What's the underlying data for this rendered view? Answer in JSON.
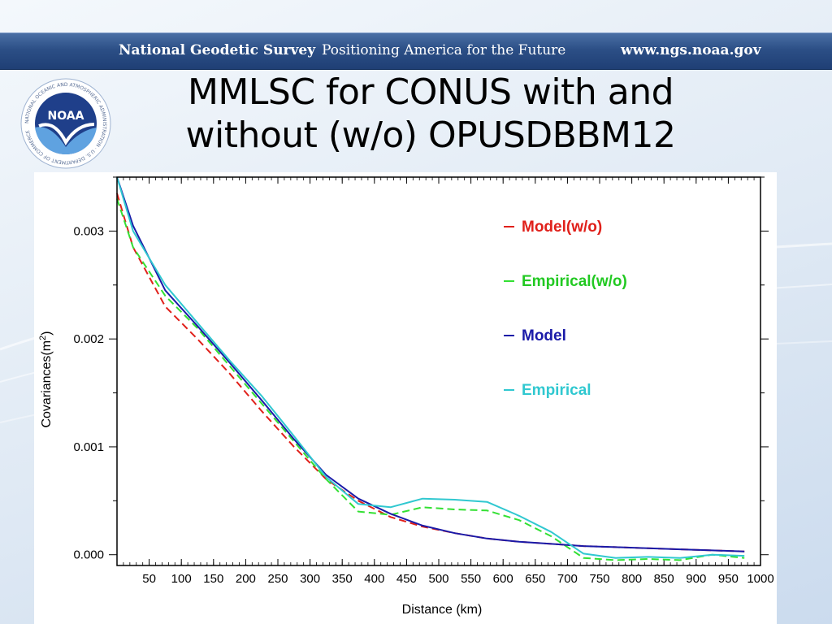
{
  "header": {
    "org_name": "National Geodetic Survey",
    "tagline": "Positioning America for the Future",
    "url": "www.ngs.noaa.gov"
  },
  "logo": {
    "text": "NOAA",
    "ring_text": "NATIONAL OCEANIC AND ATMOSPHERIC ADMINISTRATION · U.S. DEPARTMENT OF COMMERCE",
    "icon": "noaa-seal-icon"
  },
  "slide": {
    "title_line1": "MMLSC for CONUS with and",
    "title_line2": "without (w/o) OPUSDBBM12"
  },
  "chart_data": {
    "type": "line",
    "xlabel": "Distance (km)",
    "ylabel_main": "Covariances(m",
    "ylabel_sup": "2",
    "ylabel_close": ")",
    "xlim": [
      0,
      1000
    ],
    "ylim": [
      -0.0001,
      0.0035
    ],
    "x_ticks": [
      50,
      100,
      150,
      200,
      250,
      300,
      350,
      400,
      450,
      500,
      550,
      600,
      650,
      700,
      750,
      800,
      850,
      900,
      950,
      1000
    ],
    "y_ticks": [
      0.0,
      0.001,
      0.002,
      0.003
    ],
    "y_tick_labels": [
      "0.000",
      "0.001",
      "0.002",
      "0.003"
    ],
    "grid": false,
    "legend_position": "top-right",
    "series": [
      {
        "name": "Model(w/o)",
        "color": "#e0201a",
        "dash": "dashed",
        "x": [
          0,
          25,
          75,
          125,
          175,
          225,
          275,
          325,
          375,
          425,
          475,
          525,
          575,
          625,
          675,
          725,
          775,
          825,
          875,
          925,
          975
        ],
        "y": [
          0.00335,
          0.00285,
          0.0023,
          0.002,
          0.00168,
          0.00133,
          0.001,
          0.0007,
          0.0005,
          0.00035,
          0.00026,
          0.0002,
          0.00015,
          0.00012,
          0.0001,
          8e-05,
          7e-05,
          6e-05,
          5e-05,
          4e-05,
          3e-05
        ]
      },
      {
        "name": "Empirical(w/o)",
        "color": "#33e033",
        "dash": "dashed",
        "x": [
          0,
          25,
          75,
          125,
          175,
          225,
          275,
          325,
          375,
          425,
          475,
          525,
          575,
          625,
          675,
          725,
          775,
          825,
          875,
          925,
          975
        ],
        "y": [
          0.0033,
          0.00285,
          0.0024,
          0.0021,
          0.00175,
          0.0014,
          0.00105,
          0.0007,
          0.0004,
          0.00037,
          0.00044,
          0.00042,
          0.00041,
          0.00032,
          0.00017,
          -3e-05,
          -5e-05,
          -4e-05,
          -5e-05,
          0.0,
          -3e-05
        ]
      },
      {
        "name": "Model",
        "color": "#1a1aa8",
        "dash": "solid",
        "x": [
          0,
          25,
          75,
          125,
          175,
          225,
          275,
          325,
          375,
          425,
          475,
          525,
          575,
          625,
          675,
          725,
          775,
          825,
          875,
          925,
          975
        ],
        "y": [
          0.0035,
          0.00305,
          0.00245,
          0.00212,
          0.00178,
          0.00143,
          0.00107,
          0.00074,
          0.00052,
          0.00038,
          0.00027,
          0.0002,
          0.00015,
          0.00012,
          0.0001,
          8e-05,
          7e-05,
          6e-05,
          5e-05,
          4e-05,
          3e-05
        ]
      },
      {
        "name": "Empirical",
        "color": "#30c8d0",
        "dash": "solid",
        "x": [
          0,
          25,
          75,
          125,
          175,
          225,
          275,
          325,
          375,
          425,
          475,
          525,
          575,
          625,
          675,
          725,
          775,
          825,
          875,
          925,
          975
        ],
        "y": [
          0.0035,
          0.003,
          0.0025,
          0.00215,
          0.0018,
          0.00147,
          0.0011,
          0.00072,
          0.00047,
          0.00044,
          0.00052,
          0.00051,
          0.00049,
          0.00036,
          0.00021,
          1e-05,
          -3e-05,
          -2e-05,
          -3e-05,
          0.0,
          -1e-05
        ]
      }
    ]
  }
}
